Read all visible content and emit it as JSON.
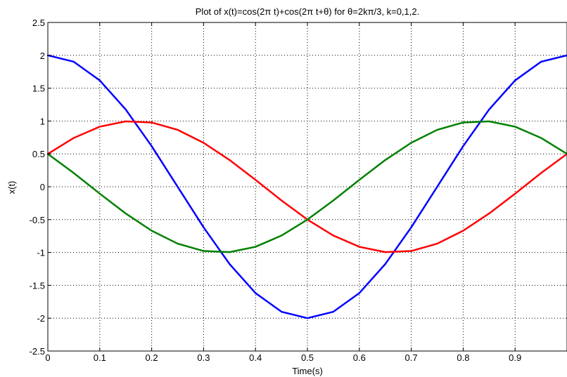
{
  "chart_data": {
    "type": "line",
    "title": "Plot of x(t)=cos(2π t)+cos(2π t+θ) for θ=2kπ/3, k=0,1,2.",
    "xlabel": "Time(s)",
    "ylabel": "x(t)",
    "xlim": [
      0,
      1
    ],
    "ylim": [
      -2.5,
      2.5
    ],
    "grid": true,
    "x_ticks": [
      0,
      0.1,
      0.2,
      0.3,
      0.4,
      0.5,
      0.6,
      0.7,
      0.8,
      0.9
    ],
    "x_tick_labels": [
      "0",
      "0.1",
      "0.2",
      "0.3",
      "0.4",
      "0.5",
      "0.6",
      "0.7",
      "0.8",
      "0.9"
    ],
    "y_ticks": [
      2.5,
      2,
      1.5,
      1,
      0.5,
      0,
      -0.5,
      -1,
      -1.5,
      -2,
      -2.5
    ],
    "y_tick_labels": [
      "2.5",
      "2",
      "1.5",
      "1",
      "0.5",
      "0",
      "-0.5",
      "-1",
      "-1.5",
      "-2",
      "-2.5"
    ],
    "x": [
      0,
      0.05,
      0.1,
      0.15,
      0.2,
      0.25,
      0.3,
      0.35,
      0.4,
      0.45,
      0.5,
      0.55,
      0.6,
      0.65,
      0.7,
      0.75,
      0.8,
      0.85,
      0.9,
      0.95,
      1.0
    ],
    "series": [
      {
        "color": "#0000ff",
        "values": [
          2.0,
          1.902,
          1.618,
          1.176,
          0.618,
          0.0,
          -0.618,
          -1.176,
          -1.618,
          -1.902,
          -2.0,
          -1.902,
          -1.618,
          -1.176,
          -0.618,
          0.0,
          0.618,
          1.176,
          1.618,
          1.902,
          2.0
        ]
      },
      {
        "color": "#ff0000",
        "values": [
          0.5,
          0.743,
          0.914,
          0.995,
          0.978,
          0.866,
          0.669,
          0.407,
          0.105,
          -0.208,
          -0.5,
          -0.743,
          -0.914,
          -0.995,
          -0.978,
          -0.866,
          -0.669,
          -0.407,
          -0.105,
          0.208,
          0.5
        ]
      },
      {
        "color": "#008000",
        "values": [
          0.5,
          0.208,
          -0.105,
          -0.407,
          -0.669,
          -0.866,
          -0.978,
          -0.995,
          -0.914,
          -0.743,
          -0.5,
          -0.208,
          0.105,
          0.407,
          0.669,
          0.866,
          0.978,
          0.995,
          0.914,
          0.743,
          0.5
        ]
      }
    ]
  }
}
